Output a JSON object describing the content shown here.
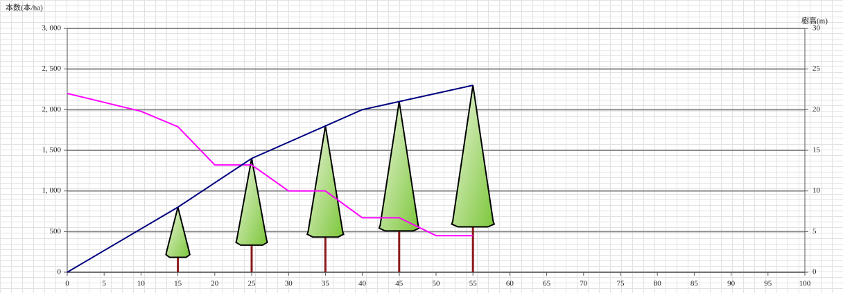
{
  "chart_data": {
    "type": "line",
    "y_label": "本数(本/ha)",
    "y2_label": "樹高(m)",
    "xlim": [
      0,
      100
    ],
    "xticks": [
      0,
      5,
      10,
      15,
      20,
      25,
      30,
      35,
      40,
      45,
      50,
      55,
      60,
      65,
      70,
      75,
      80,
      85,
      90,
      95,
      100
    ],
    "ylim": [
      0,
      3000
    ],
    "yticks": [
      0,
      500,
      {
        "value": 1000,
        "label": "1, 000"
      },
      {
        "value": 1500,
        "label": "1, 500"
      },
      {
        "value": 2000,
        "label": "2, 000"
      },
      {
        "value": 2500,
        "label": "2, 500"
      },
      {
        "value": 3000,
        "label": "3, 000"
      }
    ],
    "y2lim": [
      0,
      30
    ],
    "y2ticks": [
      0,
      5,
      10,
      15,
      20,
      25,
      30
    ],
    "grid": true,
    "series": [
      {
        "color": "#ff00ff",
        "x": [
          0,
          10,
          15,
          20,
          25,
          30,
          35,
          40,
          45,
          50,
          55
        ],
        "values": [
          2200,
          1980,
          1790,
          1320,
          1320,
          1000,
          1000,
          670,
          670,
          450,
          450
        ]
      },
      {
        "color": "#000080",
        "axis": "y2",
        "x": [
          0,
          15,
          25,
          35,
          40,
          45,
          55
        ],
        "values": [
          0,
          8,
          14,
          18,
          20,
          21,
          23
        ]
      }
    ]
  }
}
